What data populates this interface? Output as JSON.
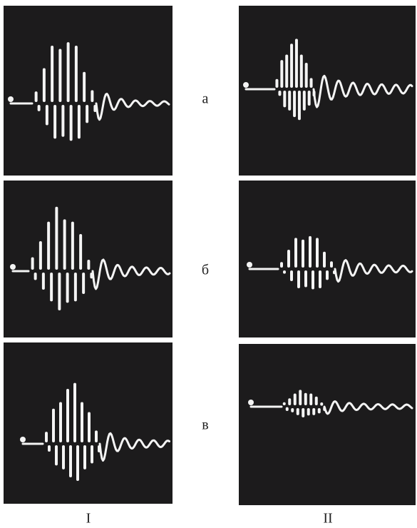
{
  "rows": [
    "а",
    "б",
    "в"
  ],
  "columns": [
    "I",
    "II"
  ]
}
